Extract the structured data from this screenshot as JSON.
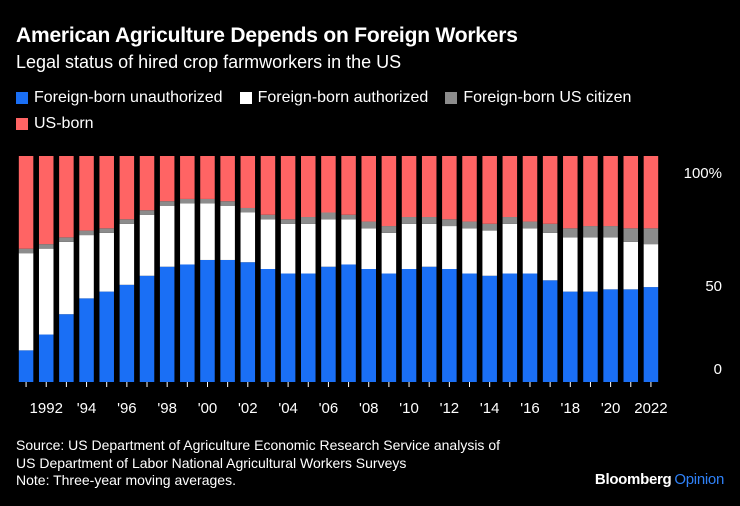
{
  "title": "American Agriculture Depends on Foreign Workers",
  "subtitle": "Legal status of hired crop farmworkers in the US",
  "legend": [
    {
      "label": "Foreign-born unauthorized",
      "color": "#1a6ff5"
    },
    {
      "label": "Foreign-born authorized",
      "color": "#ffffff"
    },
    {
      "label": "Foreign-born US citizen",
      "color": "#8c8c8c"
    },
    {
      "label": "US-born",
      "color": "#ff6464"
    }
  ],
  "footer": {
    "source_line1": "Source: US Department of Agriculture Economic Research Service analysis of",
    "source_line2": "US Department of Labor National Agricultural Workers Surveys",
    "note": "Note: Three-year moving averages."
  },
  "brand": {
    "name": "Bloomberg",
    "section": "Opinion"
  },
  "chart_data": {
    "type": "bar",
    "stacked": true,
    "x": [
      1991,
      1992,
      1993,
      1994,
      1995,
      1996,
      1997,
      1998,
      1999,
      2000,
      2001,
      2002,
      2003,
      2004,
      2005,
      2006,
      2007,
      2008,
      2009,
      2010,
      2011,
      2012,
      2013,
      2014,
      2015,
      2016,
      2017,
      2018,
      2019,
      2020,
      2021,
      2022
    ],
    "x_tick_labels": {
      "1992": "1992",
      "1994": "'94",
      "1996": "'96",
      "1998": "'98",
      "2000": "'00",
      "2002": "'02",
      "2004": "'04",
      "2006": "'06",
      "2008": "'08",
      "2010": "'10",
      "2012": "'12",
      "2014": "'14",
      "2016": "'16",
      "2018": "'18",
      "2020": "'20",
      "2022": "2022"
    },
    "y_ticks": [
      {
        "value": 0,
        "label": "0"
      },
      {
        "value": 50,
        "label": "50"
      },
      {
        "value": 100,
        "label": "100%"
      }
    ],
    "ylim": [
      0,
      100
    ],
    "series": [
      {
        "name": "Foreign-born unauthorized",
        "color": "#1a6ff5",
        "values": [
          14,
          21,
          30,
          37,
          40,
          43,
          47,
          51,
          52,
          54,
          54,
          53,
          50,
          48,
          48,
          51,
          52,
          50,
          48,
          50,
          51,
          50,
          48,
          47,
          48,
          48,
          45,
          40,
          40,
          41,
          41,
          42
        ]
      },
      {
        "name": "Foreign-born authorized",
        "color": "#ffffff",
        "values": [
          43,
          38,
          32,
          28,
          26,
          27,
          27,
          27,
          27,
          25,
          24,
          22,
          22,
          22,
          22,
          21,
          20,
          18,
          18,
          20,
          19,
          19,
          20,
          20,
          22,
          20,
          21,
          24,
          24,
          23,
          21,
          19
        ]
      },
      {
        "name": "Foreign-born US citizen",
        "color": "#8c8c8c",
        "values": [
          2,
          2,
          2,
          2,
          2,
          2,
          2,
          2,
          2,
          2,
          2,
          2,
          2,
          2,
          3,
          3,
          2,
          3,
          3,
          3,
          3,
          3,
          3,
          3,
          3,
          3,
          4,
          4,
          5,
          5,
          6,
          7
        ]
      },
      {
        "name": "US-born",
        "color": "#ff6464",
        "values": [
          41,
          39,
          36,
          33,
          32,
          28,
          24,
          20,
          19,
          19,
          20,
          23,
          26,
          28,
          27,
          25,
          26,
          29,
          31,
          27,
          27,
          28,
          29,
          30,
          27,
          29,
          30,
          32,
          31,
          31,
          32,
          32
        ]
      }
    ]
  }
}
